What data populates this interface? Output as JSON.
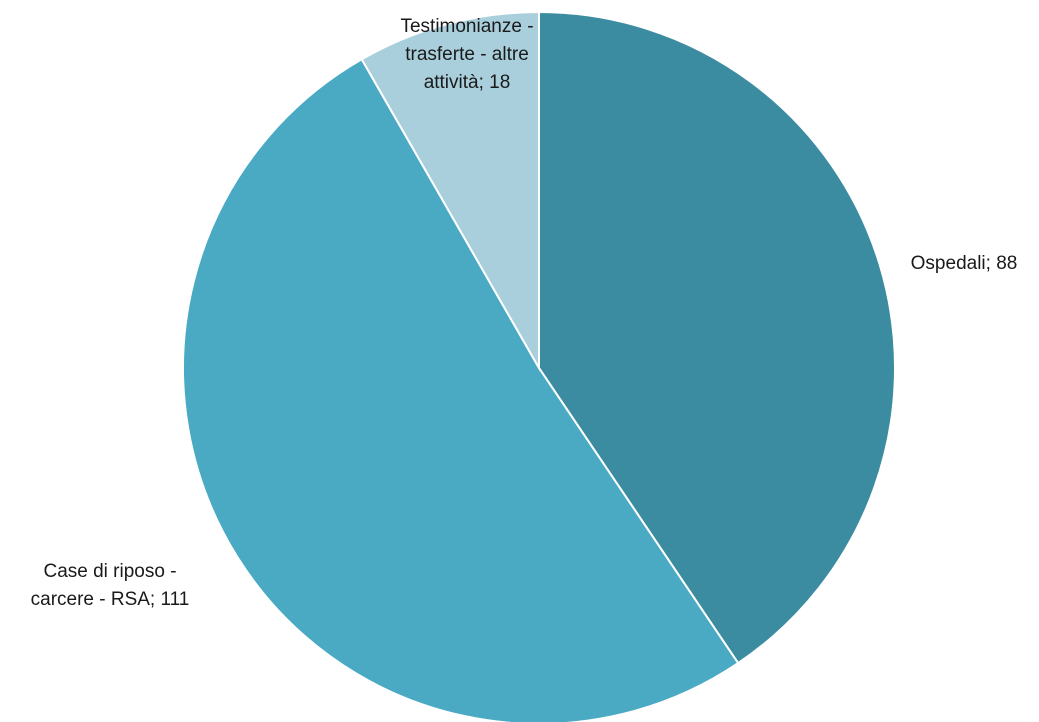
{
  "chart_data": {
    "type": "pie",
    "title": "",
    "start_angle": "12 o'clock",
    "direction": "clockwise",
    "legend": "none",
    "slices": [
      {
        "category": "Ospedali",
        "value": 88,
        "label_lines": [
          "Ospedali; 88"
        ],
        "color": "#3b8ba1"
      },
      {
        "category": "Case di riposo - carcere - RSA",
        "value": 111,
        "label_lines": [
          "Case di riposo -",
          "carcere - RSA; 111"
        ],
        "color": "#4aaac4"
      },
      {
        "category": "Testimonianze - trasferte - altre attività",
        "value": 18,
        "label_lines": [
          "Testimonianze -",
          "trasferte - altre",
          "attività;  18"
        ],
        "color": "#a9cfdc"
      }
    ]
  }
}
